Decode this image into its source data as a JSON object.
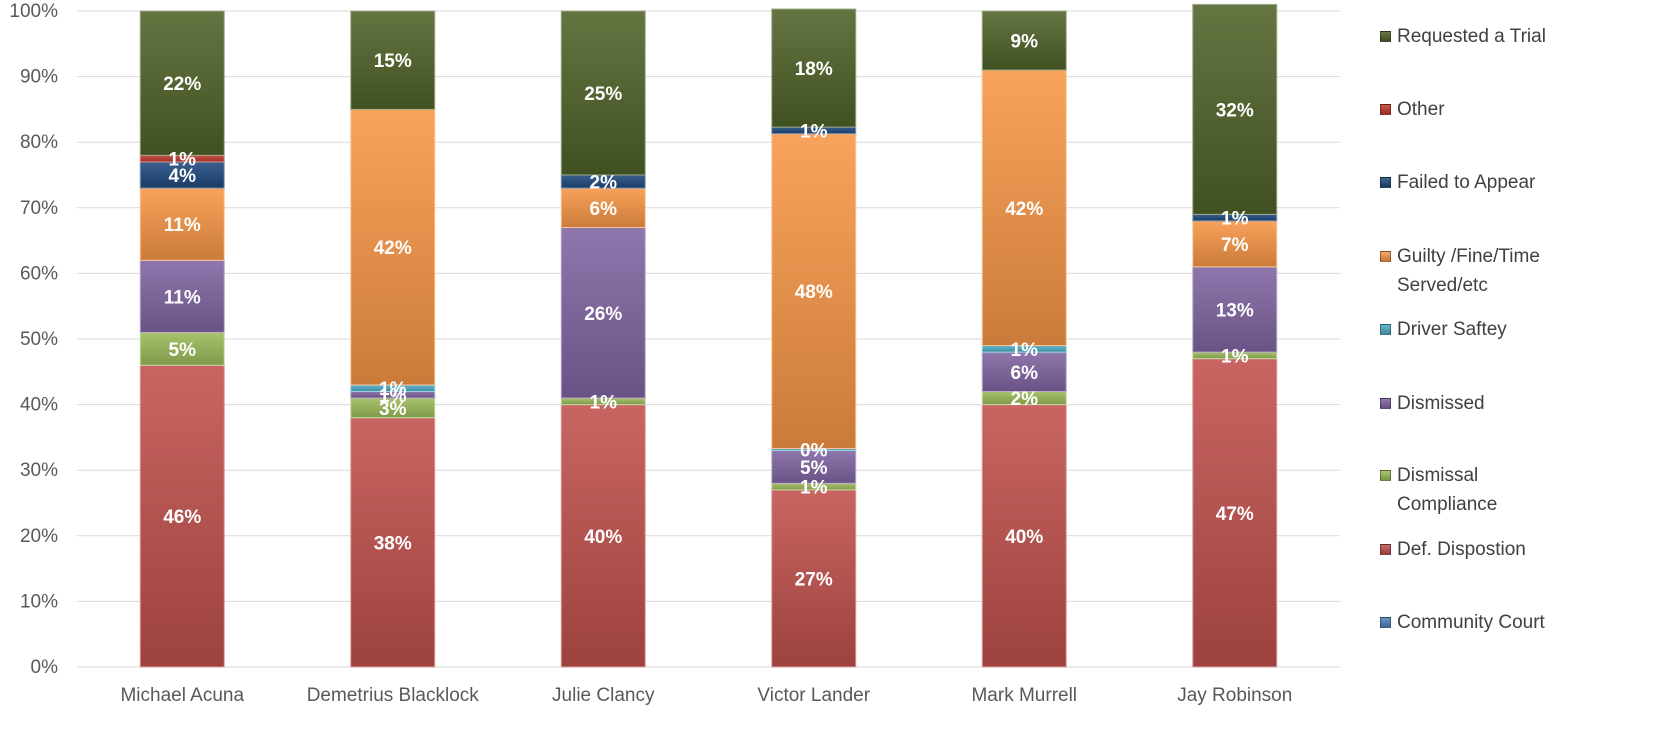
{
  "chart_data": {
    "type": "bar",
    "stacked": true,
    "ylim": [
      0,
      100
    ],
    "y_ticks": [
      "0%",
      "10%",
      "20%",
      "30%",
      "40%",
      "50%",
      "60%",
      "70%",
      "80%",
      "90%",
      "100%"
    ],
    "grid": true,
    "legend_position": "right",
    "categories": [
      "Michael Acuna",
      "Demetrius Blacklock",
      "Julie Clancy",
      "Victor Lander",
      "Mark Murrell",
      "Jay Robinson"
    ],
    "series": [
      {
        "name": "Community Court",
        "color": "#4f81bd",
        "values": [
          0,
          0,
          0,
          0,
          0,
          0
        ],
        "labels": [
          "",
          "",
          "",
          "",
          "",
          ""
        ]
      },
      {
        "name": "Def. Dispostion",
        "color": "#c0504d",
        "values": [
          46,
          38,
          40,
          27,
          40,
          47
        ],
        "labels": [
          "46%",
          "38%",
          "40%",
          "27%",
          "40%",
          "47%"
        ]
      },
      {
        "name": "Dismissal\nCompliance",
        "color": "#9bbb59",
        "values": [
          5,
          3,
          1,
          1,
          2,
          1
        ],
        "labels": [
          "5%",
          "3%",
          "1%",
          "1%",
          "2%",
          "1%"
        ]
      },
      {
        "name": "Dismissed",
        "color": "#8064a2",
        "values": [
          11,
          1,
          26,
          5,
          6,
          13
        ],
        "labels": [
          "11%",
          "1%",
          "26%",
          "5%",
          "6%",
          "13%"
        ]
      },
      {
        "name": "Driver Saftey",
        "color": "#4bacc6",
        "values": [
          0,
          1,
          0,
          0.3,
          1,
          0
        ],
        "labels": [
          "",
          "1%",
          "",
          "0%",
          "1%",
          ""
        ]
      },
      {
        "name": "Guilty /Fine/Time\nServed/etc",
        "color": "#f79646",
        "values": [
          11,
          42,
          6,
          48,
          42,
          7
        ],
        "labels": [
          "11%",
          "42%",
          "6%",
          "48%",
          "42%",
          "7%"
        ]
      },
      {
        "name": "Failed to Appear",
        "color": "#1f497d",
        "values": [
          4,
          0,
          2,
          1,
          0,
          1
        ],
        "labels": [
          "4%",
          "",
          "2%",
          "1%",
          "",
          "1%"
        ]
      },
      {
        "name": "Other",
        "color": "#c0392b",
        "values": [
          1,
          0,
          0,
          0,
          0,
          0
        ],
        "labels": [
          "1%",
          "",
          "",
          "",
          "",
          ""
        ]
      },
      {
        "name": "Requested a Trial",
        "color": "#4f6228",
        "values": [
          22,
          15,
          25,
          18,
          9,
          32
        ],
        "labels": [
          "22%",
          "15%",
          "25%",
          "18%",
          "9%",
          "32%"
        ]
      }
    ]
  }
}
